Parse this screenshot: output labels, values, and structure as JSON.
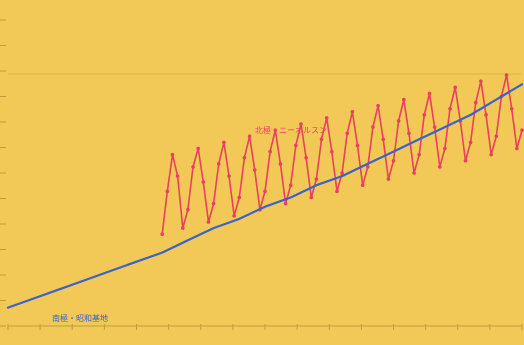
{
  "chart_data": {
    "type": "line",
    "title": "",
    "xlabel": "",
    "ylabel": "",
    "x_tick_count": 17,
    "y_tick_count": 13,
    "grid": "single horizontal reference line near top",
    "xlim": [
      0,
      100
    ],
    "ylim": [
      0,
      100
    ],
    "series": [
      {
        "name": "北極・ニーオルスン",
        "color": "#e8405e",
        "style": "seasonal cycle with rising trend",
        "x": [
          30,
          31,
          32,
          33,
          34,
          35,
          36,
          37,
          38,
          39,
          40,
          41,
          42,
          43,
          44,
          45,
          46,
          47,
          48,
          49,
          50,
          51,
          52,
          53,
          54,
          55,
          56,
          57,
          58,
          59,
          60,
          61,
          62,
          63,
          64,
          65,
          66,
          67,
          68,
          69,
          70,
          71,
          72,
          73,
          74,
          75,
          76,
          77,
          78,
          79,
          80,
          81,
          82,
          83,
          84,
          85,
          86,
          87,
          88,
          89,
          90,
          91,
          92,
          93,
          94,
          95,
          96,
          97,
          98,
          99,
          100
        ],
        "y": [
          30,
          44,
          56,
          49,
          32,
          38,
          52,
          58,
          47,
          34,
          40,
          53,
          60,
          49,
          36,
          42,
          55,
          62,
          51,
          38,
          44,
          57,
          64,
          53,
          40,
          46,
          59,
          66,
          55,
          42,
          48,
          61,
          68,
          57,
          44,
          50,
          63,
          70,
          59,
          46,
          52,
          65,
          72,
          61,
          48,
          54,
          67,
          74,
          63,
          50,
          56,
          69,
          76,
          65,
          52,
          58,
          71,
          78,
          67,
          54,
          60,
          73,
          80,
          69,
          56,
          62,
          75,
          82,
          71,
          58,
          64
        ]
      },
      {
        "name": "南極・昭和基地",
        "color": "#3a63c9",
        "style": "steady increase with small seasonal ripple",
        "x": [
          0,
          5,
          10,
          15,
          20,
          25,
          30,
          35,
          40,
          45,
          50,
          55,
          60,
          65,
          70,
          75,
          80,
          85,
          90,
          95,
          100
        ],
        "y": [
          6,
          9,
          12,
          15,
          18,
          21,
          24,
          28,
          32,
          35,
          39,
          42,
          46,
          49,
          53,
          57,
          61,
          65,
          69,
          74,
          79
        ]
      }
    ],
    "labels": [
      {
        "text": "北極・ニーオルスン",
        "series_index": 0
      },
      {
        "text": "南極・昭和基地",
        "series_index": 1
      }
    ]
  }
}
